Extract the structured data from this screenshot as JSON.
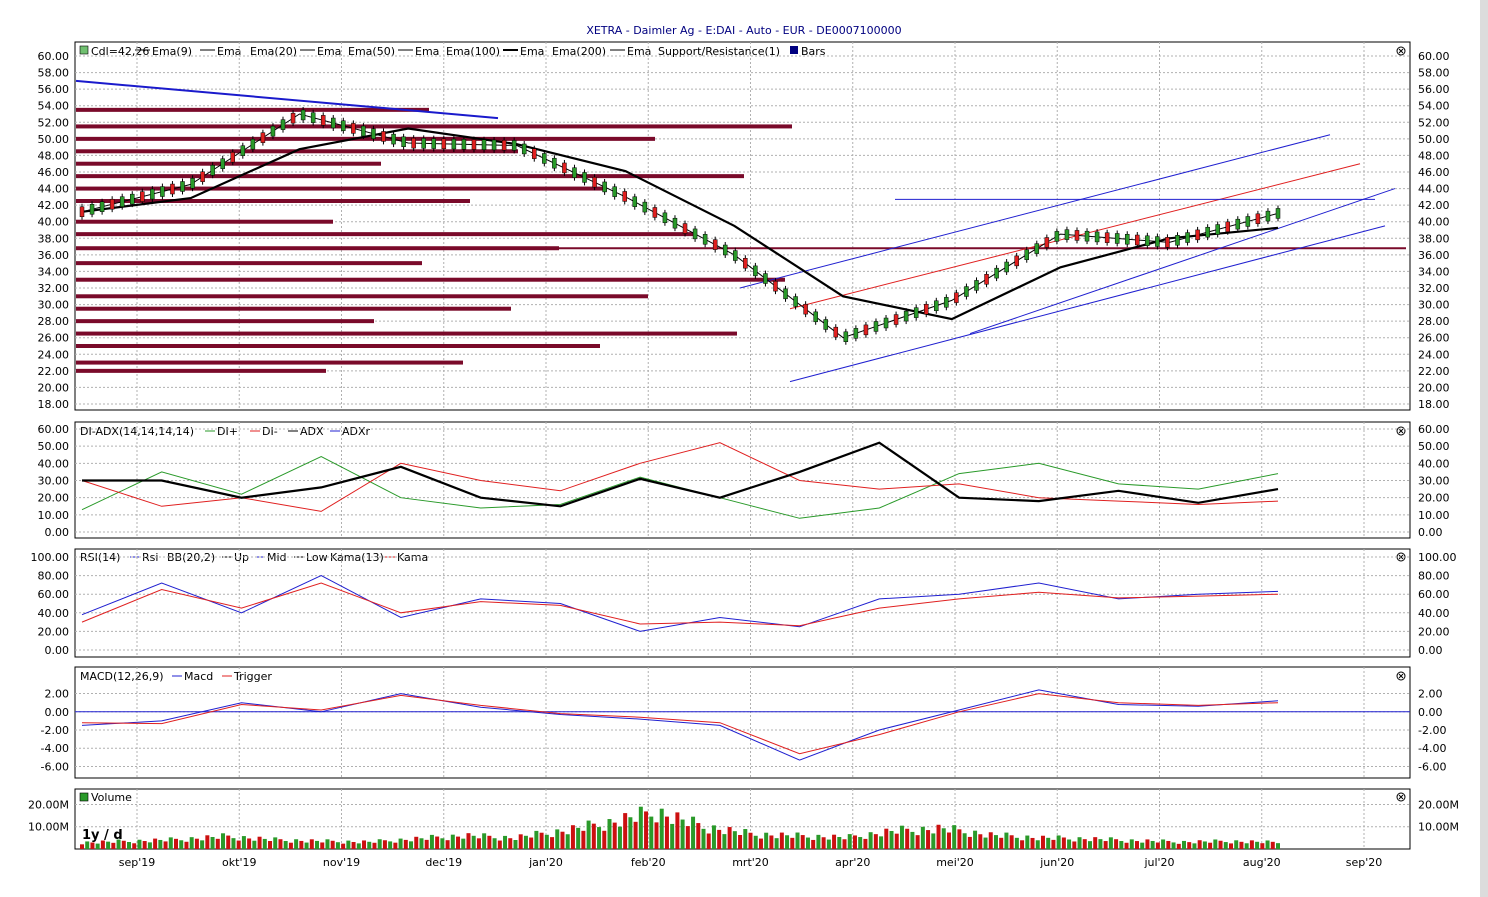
{
  "title": "XETRA - Daimler Ag - E:DAI - Auto - EUR - DE0007100000",
  "x_axis_labels": [
    "sep'19",
    "okt'19",
    "nov'19",
    "dec'19",
    "jan'20",
    "feb'20",
    "mrt'20",
    "apr'20",
    "mei'20",
    "jun'20",
    "jul'20",
    "aug'20",
    "sep'20"
  ],
  "chart_data": [
    {
      "type": "line",
      "name": "price",
      "legend": [
        "Cdl=42,26",
        "Ema(9)",
        "Ema",
        "Ema(20)",
        "Ema",
        "Ema(50)",
        "Ema",
        "Ema(100)",
        "Ema",
        "Ema(200)",
        "Ema",
        "Support/Resistance(1)",
        "Bars"
      ],
      "ylim": [
        18,
        60
      ],
      "yticks": [
        "60.00",
        "58.00",
        "56.00",
        "54.00",
        "52.00",
        "50.00",
        "48.00",
        "46.00",
        "44.00",
        "42.00",
        "40.00",
        "38.00",
        "36.00",
        "34.00",
        "32.00",
        "30.00",
        "28.00",
        "26.00",
        "24.00",
        "22.00",
        "20.00",
        "18.00"
      ],
      "x": [
        "sep'19",
        "okt'19",
        "nov'19",
        "dec'19",
        "jan'20",
        "feb'20",
        "mrt'20",
        "apr'20",
        "mei'20",
        "jun'20",
        "jul'20",
        "aug'20"
      ],
      "close": [
        41.2,
        44.5,
        53.0,
        49.5,
        49.2,
        43.0,
        36.0,
        26.0,
        30.5,
        38.5,
        37.5,
        41.0
      ],
      "last": 42.26,
      "support_resistance": [
        22.0,
        23.0,
        25.0,
        26.5,
        28.0,
        29.5,
        31.0,
        33.0,
        35.0,
        36.8,
        38.5,
        40.0,
        42.5,
        44.0,
        45.5,
        47.0,
        48.5,
        50.0,
        51.5,
        53.5
      ]
    },
    {
      "type": "line",
      "name": "dmi",
      "legend": [
        "DI-ADX(14,14,14,14)",
        "DI+",
        "DI-",
        "ADX",
        "ADXr"
      ],
      "ylim": [
        0,
        60
      ],
      "yticks": [
        "60.00",
        "50.00",
        "40.00",
        "30.00",
        "20.00",
        "10.00",
        "0.00"
      ],
      "series": [
        {
          "name": "DI+",
          "values": [
            13,
            35,
            22,
            44,
            20,
            14,
            16,
            32,
            20,
            8,
            14,
            34,
            40,
            28,
            25,
            34
          ]
        },
        {
          "name": "DI-",
          "values": [
            30,
            15,
            20,
            12,
            40,
            30,
            24,
            40,
            52,
            30,
            25,
            28,
            20,
            18,
            16,
            18
          ]
        },
        {
          "name": "ADX",
          "values": [
            30,
            30,
            20,
            26,
            38,
            20,
            15,
            31,
            20,
            35,
            52,
            20,
            18,
            24,
            17,
            25
          ]
        }
      ]
    },
    {
      "type": "line",
      "name": "rsi",
      "legend": [
        "RSI(14)",
        "Rsi",
        "BB(20,2)",
        "Up",
        "Mid",
        "Low",
        "Kama(13)",
        "Kama"
      ],
      "ylim": [
        0,
        100
      ],
      "yticks": [
        "100.00",
        "80.00",
        "60.00",
        "40.00",
        "20.00",
        "0.00"
      ],
      "series": [
        {
          "name": "Rsi",
          "values": [
            38,
            72,
            40,
            80,
            35,
            55,
            50,
            20,
            35,
            25,
            55,
            60,
            72,
            55,
            60,
            63
          ]
        },
        {
          "name": "Kama",
          "values": [
            30,
            65,
            45,
            72,
            40,
            52,
            48,
            28,
            30,
            26,
            45,
            55,
            62,
            56,
            58,
            60
          ]
        }
      ]
    },
    {
      "type": "line",
      "name": "macd",
      "legend": [
        "MACD(12,26,9)",
        "Macd",
        "Trigger"
      ],
      "ylim": [
        -6,
        2.5
      ],
      "yticks": [
        "2.00",
        "0.00",
        "-2.00",
        "-4.00",
        "-6.00"
      ],
      "series": [
        {
          "name": "Macd",
          "values": [
            -1.5,
            -1.0,
            1.0,
            0.0,
            2.0,
            0.5,
            -0.3,
            -0.8,
            -1.5,
            -5.3,
            -2.0,
            0.2,
            2.4,
            0.8,
            0.6,
            1.2
          ]
        },
        {
          "name": "Trigger",
          "values": [
            -1.2,
            -1.3,
            0.8,
            0.2,
            1.8,
            0.7,
            -0.2,
            -0.6,
            -1.2,
            -4.6,
            -2.5,
            0.0,
            2.0,
            1.0,
            0.7,
            1.0
          ]
        }
      ]
    },
    {
      "type": "bar",
      "name": "volume",
      "legend": [
        "Volume"
      ],
      "annotation": "1y / d",
      "ylim": [
        0,
        22000000
      ],
      "yticks": [
        "20.00M",
        "10.00M"
      ],
      "values": [
        3.5,
        4.2,
        5.1,
        6.8,
        5.0,
        4.2,
        3.8,
        5.5,
        7.2,
        6.0,
        9.5,
        14.0,
        20.0,
        12.0,
        8.0,
        7.0,
        6.2,
        9.8,
        11.0,
        7.5,
        6.0,
        5.5,
        4.5,
        3.8,
        4.2,
        3.5
      ]
    }
  ]
}
